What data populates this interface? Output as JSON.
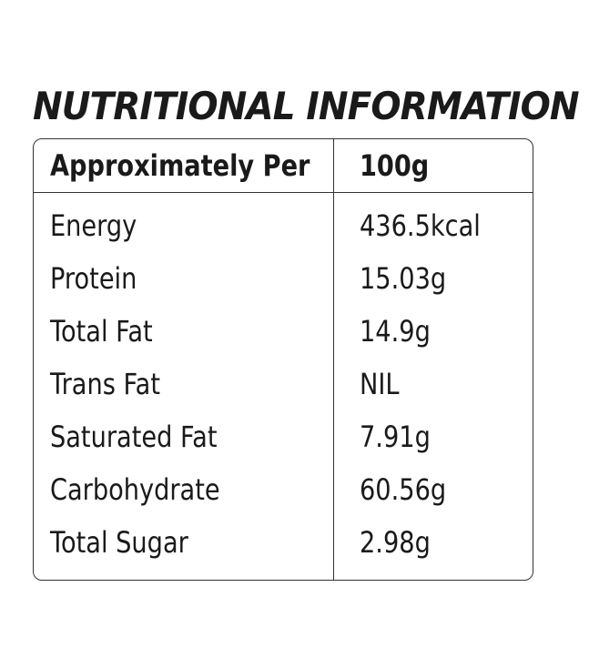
{
  "title": "NUTRITIONAL INFORMATION",
  "table": {
    "header": [
      "Approximately Per",
      "100g"
    ],
    "rows": [
      [
        "Energy",
        "436.5kcal"
      ],
      [
        "Protein",
        "15.03g"
      ],
      [
        "Total Fat",
        "14.9g"
      ],
      [
        "Trans Fat",
        "NIL"
      ],
      [
        "Saturated Fat",
        "7.91g"
      ],
      [
        "Carbohydrate",
        "60.56g"
      ],
      [
        "Total Sugar",
        "2.98g"
      ]
    ]
  }
}
